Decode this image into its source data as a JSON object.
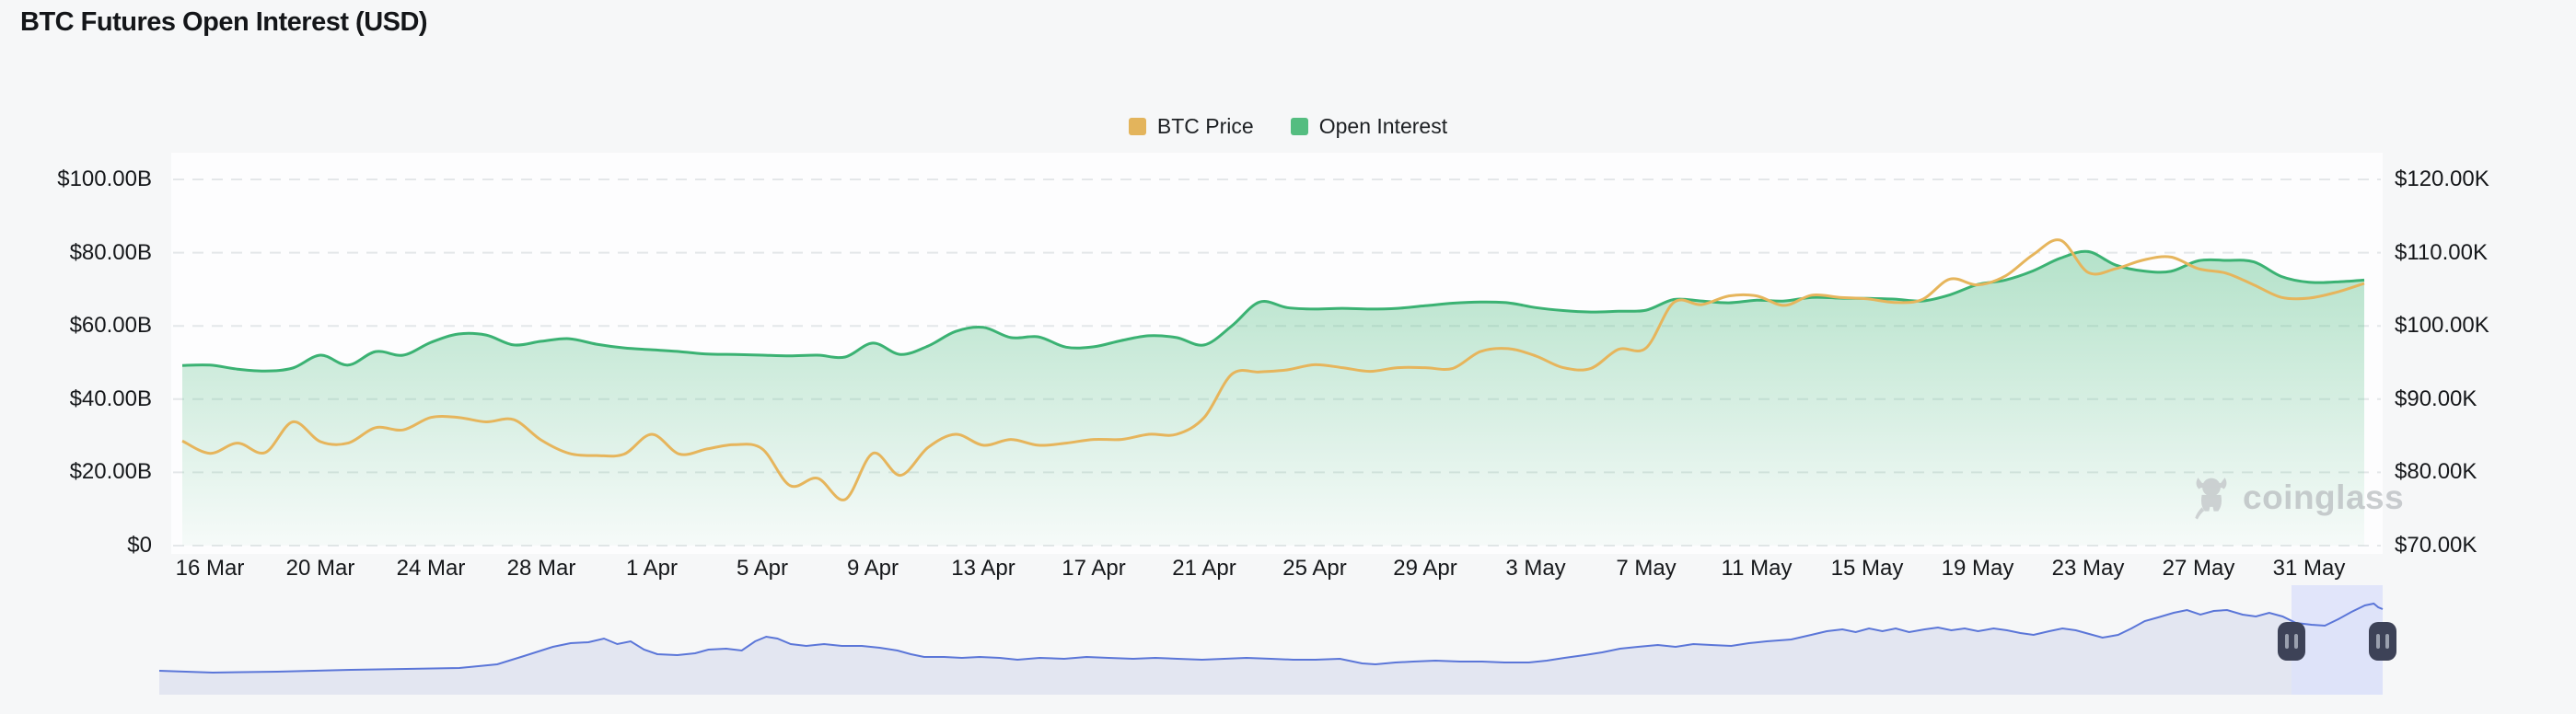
{
  "page": {
    "title": "BTC Futures Open Interest (USD)",
    "background": "#f6f7f8"
  },
  "legend": {
    "items": [
      {
        "label": "BTC Price",
        "color": "#e3b45c"
      },
      {
        "label": "Open Interest",
        "color": "#54bd80"
      }
    ]
  },
  "watermark": {
    "label": "coinglass",
    "icon": "coinglass-bull-icon"
  },
  "chart_data": {
    "type": "area",
    "title": "BTC Futures Open Interest (USD)",
    "dual_axis": true,
    "grid": "horizontal dashed",
    "legend_position": "top center",
    "x_tick_labels": [
      "16 Mar",
      "20 Mar",
      "24 Mar",
      "28 Mar",
      "1 Apr",
      "5 Apr",
      "9 Apr",
      "13 Apr",
      "17 Apr",
      "21 Apr",
      "25 Apr",
      "29 Apr",
      "3 May",
      "7 May",
      "11 May",
      "15 May",
      "19 May",
      "23 May",
      "27 May",
      "31 May"
    ],
    "left_axis": {
      "tick_labels": [
        "$100.00B",
        "$80.00B",
        "$60.00B",
        "$40.00B",
        "$20.00B",
        "$0"
      ],
      "min": 0,
      "max": 100,
      "unit": "billion USD",
      "series": "Open Interest"
    },
    "right_axis": {
      "tick_labels": [
        "$120.00K",
        "$110.00K",
        "$100.00K",
        "$90.00K",
        "$80.00K",
        "$70.00K"
      ],
      "min": 70,
      "max": 120,
      "unit": "thousand USD",
      "series": "BTC Price"
    },
    "dates": [
      "15 Mar",
      "16 Mar",
      "17 Mar",
      "18 Mar",
      "19 Mar",
      "20 Mar",
      "21 Mar",
      "22 Mar",
      "23 Mar",
      "24 Mar",
      "25 Mar",
      "26 Mar",
      "27 Mar",
      "28 Mar",
      "29 Mar",
      "30 Mar",
      "31 Mar",
      "1 Apr",
      "2 Apr",
      "3 Apr",
      "4 Apr",
      "5 Apr",
      "6 Apr",
      "7 Apr",
      "8 Apr",
      "9 Apr",
      "10 Apr",
      "11 Apr",
      "12 Apr",
      "13 Apr",
      "14 Apr",
      "15 Apr",
      "16 Apr",
      "17 Apr",
      "18 Apr",
      "19 Apr",
      "20 Apr",
      "21 Apr",
      "22 Apr",
      "23 Apr",
      "24 Apr",
      "25 Apr",
      "26 Apr",
      "27 Apr",
      "28 Apr",
      "29 Apr",
      "30 Apr",
      "1 May",
      "2 May",
      "3 May",
      "4 May",
      "5 May",
      "6 May",
      "7 May",
      "8 May",
      "9 May",
      "10 May",
      "11 May",
      "12 May",
      "13 May",
      "14 May",
      "15 May",
      "16 May",
      "17 May",
      "18 May",
      "19 May",
      "20 May",
      "21 May",
      "22 May",
      "23 May",
      "24 May",
      "25 May",
      "26 May",
      "27 May",
      "28 May",
      "29 May",
      "30 May",
      "31 May",
      "1 Jun",
      "2 Jun"
    ],
    "series": [
      {
        "name": "Open Interest",
        "type": "area",
        "axis": "left",
        "color": "#3bb273",
        "unit": "B",
        "values": [
          49.2,
          49.3,
          48.2,
          47.7,
          48.5,
          52.0,
          49.3,
          53.0,
          52.0,
          55.5,
          57.8,
          57.5,
          54.8,
          55.8,
          56.5,
          55.0,
          54.0,
          53.5,
          53.0,
          52.3,
          52.2,
          52.0,
          51.8,
          52.0,
          51.5,
          55.3,
          52.2,
          54.5,
          58.5,
          59.6,
          56.8,
          57.0,
          54.2,
          54.3,
          56.0,
          57.3,
          56.8,
          54.8,
          60.0,
          66.5,
          65.0,
          64.6,
          64.8,
          64.6,
          64.8,
          65.5,
          66.2,
          66.5,
          66.3,
          65.0,
          64.2,
          63.8,
          64.0,
          64.3,
          67.2,
          66.8,
          66.3,
          67.0,
          66.8,
          67.8,
          67.6,
          67.5,
          67.3,
          66.8,
          68.5,
          71.3,
          72.5,
          75.0,
          78.5,
          80.3,
          76.6,
          75.0,
          74.9,
          77.8,
          77.9,
          77.5,
          73.5,
          71.9,
          72.0,
          72.5
        ]
      },
      {
        "name": "BTC Price",
        "type": "line",
        "axis": "right",
        "color": "#e6b55c",
        "unit": "K",
        "values": [
          84.3,
          82.6,
          84.0,
          82.7,
          86.9,
          84.2,
          84.0,
          86.1,
          85.8,
          87.5,
          87.5,
          86.9,
          87.2,
          84.4,
          82.6,
          82.3,
          82.5,
          85.2,
          82.5,
          83.2,
          83.8,
          83.2,
          78.2,
          79.2,
          76.3,
          82.6,
          79.6,
          83.4,
          85.2,
          83.7,
          84.5,
          83.7,
          84.0,
          84.5,
          84.5,
          85.2,
          85.2,
          87.5,
          93.4,
          93.7,
          94.0,
          94.7,
          94.3,
          93.8,
          94.3,
          94.3,
          94.2,
          96.5,
          96.9,
          95.9,
          94.3,
          94.2,
          96.8,
          97.0,
          103.2,
          102.9,
          104.1,
          104.1,
          102.8,
          104.2,
          103.9,
          103.7,
          103.2,
          103.6,
          106.4,
          105.6,
          106.8,
          109.7,
          111.7,
          107.3,
          107.8,
          109.0,
          109.4,
          107.8,
          107.2,
          105.6,
          103.9,
          103.8,
          104.6,
          105.8
        ]
      }
    ],
    "navigator": {
      "line_color": "#5b76d8",
      "fill_color": "#e3e6f1",
      "selection_color": "#dde2fa",
      "handle_color": "#3d4257",
      "handle_icon": "pause-bars",
      "selection": [
        0.959,
        1.0
      ],
      "profile": [
        [
          0,
          13
        ],
        [
          0.024,
          11
        ],
        [
          0.053,
          12
        ],
        [
          0.086,
          14
        ],
        [
          0.111,
          15
        ],
        [
          0.135,
          16
        ],
        [
          0.152,
          20
        ],
        [
          0.164,
          29
        ],
        [
          0.177,
          39
        ],
        [
          0.185,
          43
        ],
        [
          0.193,
          44
        ],
        [
          0.2,
          48
        ],
        [
          0.206,
          42
        ],
        [
          0.212,
          45
        ],
        [
          0.218,
          36
        ],
        [
          0.224,
          31
        ],
        [
          0.233,
          30
        ],
        [
          0.241,
          32
        ],
        [
          0.247,
          36
        ],
        [
          0.255,
          37
        ],
        [
          0.262,
          35
        ],
        [
          0.268,
          45
        ],
        [
          0.273,
          50
        ],
        [
          0.278,
          48
        ],
        [
          0.284,
          42
        ],
        [
          0.291,
          40
        ],
        [
          0.299,
          42
        ],
        [
          0.307,
          40
        ],
        [
          0.316,
          40
        ],
        [
          0.324,
          38
        ],
        [
          0.332,
          35
        ],
        [
          0.338,
          31
        ],
        [
          0.344,
          28
        ],
        [
          0.353,
          28
        ],
        [
          0.361,
          27
        ],
        [
          0.369,
          28
        ],
        [
          0.378,
          27
        ],
        [
          0.386,
          25
        ],
        [
          0.396,
          27
        ],
        [
          0.407,
          26
        ],
        [
          0.417,
          28
        ],
        [
          0.427,
          27
        ],
        [
          0.438,
          26
        ],
        [
          0.448,
          27
        ],
        [
          0.458,
          26
        ],
        [
          0.469,
          25
        ],
        [
          0.479,
          26
        ],
        [
          0.489,
          27
        ],
        [
          0.5,
          26
        ],
        [
          0.51,
          25
        ],
        [
          0.52,
          25
        ],
        [
          0.531,
          26
        ],
        [
          0.541,
          21
        ],
        [
          0.547,
          20
        ],
        [
          0.556,
          22
        ],
        [
          0.564,
          23
        ],
        [
          0.574,
          24
        ],
        [
          0.585,
          23
        ],
        [
          0.595,
          23
        ],
        [
          0.605,
          22
        ],
        [
          0.616,
          22
        ],
        [
          0.624,
          24
        ],
        [
          0.632,
          27
        ],
        [
          0.641,
          30
        ],
        [
          0.649,
          33
        ],
        [
          0.657,
          37
        ],
        [
          0.665,
          39
        ],
        [
          0.674,
          41
        ],
        [
          0.682,
          39
        ],
        [
          0.69,
          42
        ],
        [
          0.698,
          41
        ],
        [
          0.707,
          40
        ],
        [
          0.715,
          43
        ],
        [
          0.723,
          45
        ],
        [
          0.734,
          47
        ],
        [
          0.743,
          52
        ],
        [
          0.75,
          56
        ],
        [
          0.757,
          58
        ],
        [
          0.763,
          55
        ],
        [
          0.769,
          59
        ],
        [
          0.775,
          56
        ],
        [
          0.781,
          59
        ],
        [
          0.787,
          55
        ],
        [
          0.794,
          58
        ],
        [
          0.8,
          60
        ],
        [
          0.806,
          57
        ],
        [
          0.812,
          59
        ],
        [
          0.818,
          56
        ],
        [
          0.825,
          59
        ],
        [
          0.831,
          57
        ],
        [
          0.837,
          54
        ],
        [
          0.843,
          52
        ],
        [
          0.85,
          56
        ],
        [
          0.856,
          59
        ],
        [
          0.862,
          57
        ],
        [
          0.868,
          53
        ],
        [
          0.874,
          49
        ],
        [
          0.881,
          52
        ],
        [
          0.887,
          59
        ],
        [
          0.893,
          67
        ],
        [
          0.899,
          71
        ],
        [
          0.906,
          76
        ],
        [
          0.912,
          79
        ],
        [
          0.918,
          74
        ],
        [
          0.924,
          78
        ],
        [
          0.93,
          79
        ],
        [
          0.937,
          74
        ],
        [
          0.943,
          72
        ],
        [
          0.949,
          76
        ],
        [
          0.955,
          72
        ],
        [
          0.961,
          65
        ],
        [
          0.968,
          63
        ],
        [
          0.974,
          62
        ],
        [
          0.98,
          69
        ],
        [
          0.986,
          77
        ],
        [
          0.992,
          84
        ],
        [
          0.996,
          86
        ],
        [
          0.998,
          82
        ],
        [
          1,
          80
        ]
      ]
    }
  }
}
